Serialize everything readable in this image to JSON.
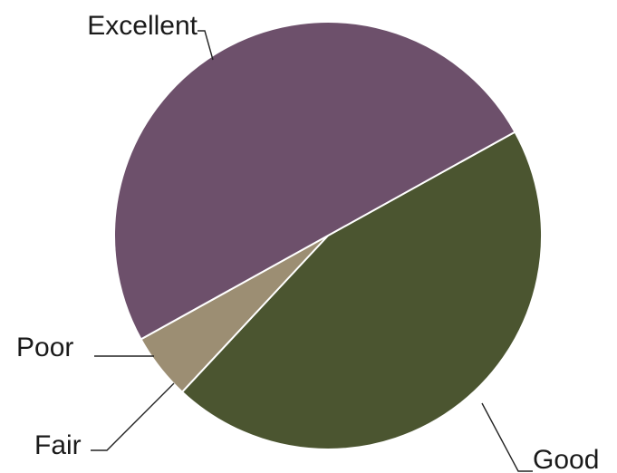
{
  "chart_data": {
    "type": "pie",
    "title": "",
    "slices": [
      {
        "label": "Excellent",
        "value": 50,
        "color": "#6d506b"
      },
      {
        "label": "Good",
        "value": 45,
        "color": "#4b5530"
      },
      {
        "label": "Fair",
        "value": 5,
        "color": "#9c8e73"
      },
      {
        "label": "Poor",
        "value": 0,
        "color": "#8f8170"
      }
    ],
    "legend": "none",
    "labels_outside_with_leader_lines": true
  }
}
